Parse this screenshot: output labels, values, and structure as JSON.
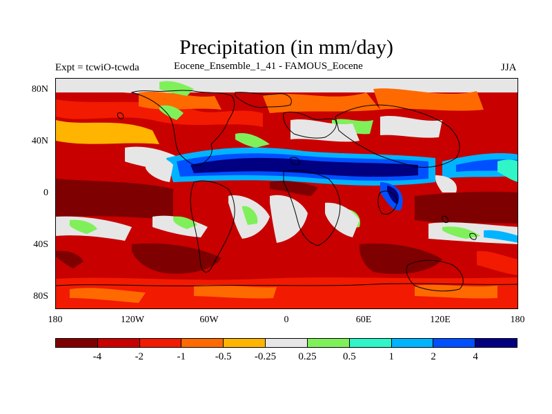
{
  "title": "Precipitation (in mm/day)",
  "subtitle_left": "Expt = tcwiO-tcwda",
  "subtitle_center": "Eocene_Ensemble_1_41 - FAMOUS_Eocene",
  "subtitle_right": "JJA",
  "lat_labels": [
    "80N",
    "40N",
    "0",
    "40S",
    "80S"
  ],
  "lon_labels": [
    "180",
    "120W",
    "60W",
    "0",
    "60E",
    "120E",
    "180"
  ],
  "colorbar": {
    "colors": [
      "#7f0000",
      "#c80000",
      "#f21a00",
      "#ff6a00",
      "#ffb400",
      "#e6e6e6",
      "#7ff05a",
      "#2ff5c8",
      "#00b4ff",
      "#0050ff",
      "#000080"
    ],
    "labels": [
      "-4",
      "-2",
      "-1",
      "-0.5",
      "-0.25",
      "0.25",
      "0.5",
      "1",
      "2",
      "4"
    ]
  },
  "colors": {
    "land_outline": "#000000",
    "background": "#ffffff"
  }
}
